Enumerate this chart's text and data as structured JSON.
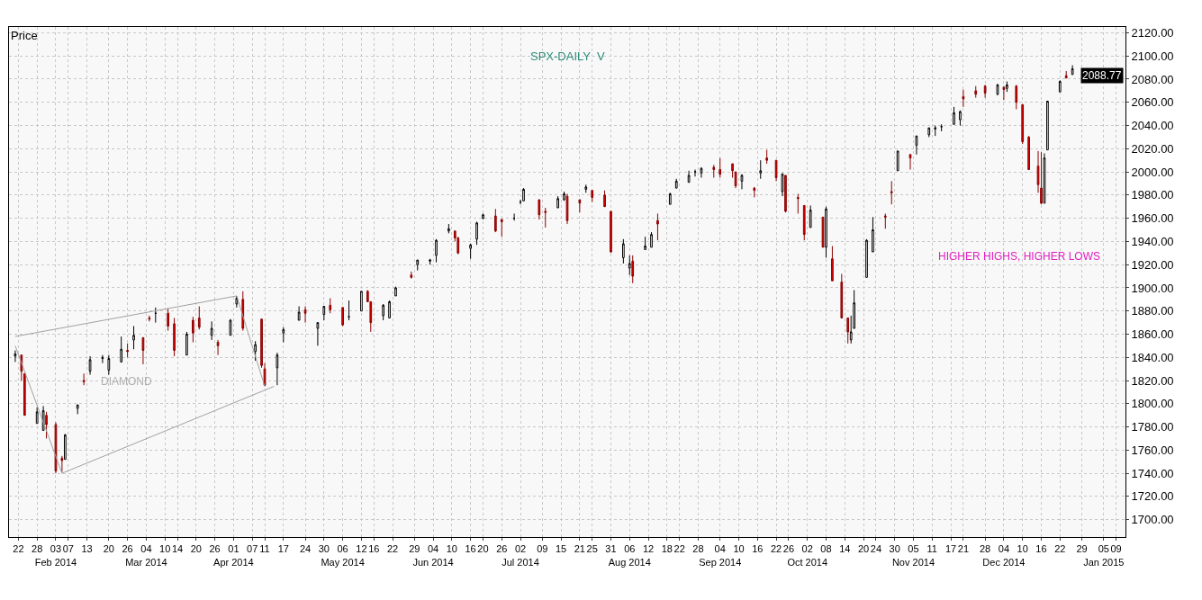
{
  "chart_data": {
    "type": "candlestick",
    "title": "SPX-DAILY  V",
    "ylabel": "Price",
    "x": [
      "2014-01-21",
      "2014-01-23",
      "2014-01-24",
      "2014-01-28",
      "2014-01-30",
      "2014-01-31",
      "2014-02-03",
      "2014-02-05",
      "2014-02-06",
      "2014-02-10",
      "2014-02-12",
      "2014-02-14",
      "2014-02-18",
      "2014-02-20",
      "2014-02-24",
      "2014-02-26",
      "2014-02-28",
      "2014-03-03",
      "2014-03-05",
      "2014-03-07",
      "2014-03-11",
      "2014-03-13",
      "2014-03-17",
      "2014-03-19",
      "2014-03-21",
      "2014-03-25",
      "2014-03-27",
      "2014-03-31",
      "2014-04-02",
      "2014-04-04",
      "2014-04-08",
      "2014-04-10",
      "2014-04-11",
      "2014-04-15",
      "2014-04-17",
      "2014-04-22",
      "2014-04-24",
      "2014-04-28",
      "2014-04-30",
      "2014-05-02",
      "2014-05-06",
      "2014-05-08",
      "2014-05-12",
      "2014-05-14",
      "2014-05-15",
      "2014-05-19",
      "2014-05-21",
      "2014-05-23",
      "2014-05-28",
      "2014-05-30",
      "2014-06-03",
      "2014-06-05",
      "2014-06-09",
      "2014-06-11",
      "2014-06-12",
      "2014-06-16",
      "2014-06-18",
      "2014-06-20",
      "2014-06-24",
      "2014-06-26",
      "2014-06-30",
      "2014-07-02",
      "2014-07-03",
      "2014-07-08",
      "2014-07-10",
      "2014-07-14",
      "2014-07-16",
      "2014-07-17",
      "2014-07-21",
      "2014-07-23",
      "2014-07-25",
      "2014-07-29",
      "2014-07-31",
      "2014-08-04",
      "2014-08-06",
      "2014-08-07",
      "2014-08-11",
      "2014-08-13",
      "2014-08-15",
      "2014-08-19",
      "2014-08-21",
      "2014-08-25",
      "2014-08-27",
      "2014-08-29",
      "2014-09-02",
      "2014-09-04",
      "2014-09-08",
      "2014-09-09",
      "2014-09-11",
      "2014-09-15",
      "2014-09-17",
      "2014-09-19",
      "2014-09-22",
      "2014-09-24",
      "2014-09-25",
      "2014-09-29",
      "2014-10-01",
      "2014-10-03",
      "2014-10-07",
      "2014-10-08",
      "2014-10-10",
      "2014-10-13",
      "2014-10-15",
      "2014-10-16",
      "2014-10-17",
      "2014-10-21",
      "2014-10-23",
      "2014-10-27",
      "2014-10-29",
      "2014-10-31",
      "2014-11-04",
      "2014-11-06",
      "2014-11-10",
      "2014-11-12",
      "2014-11-14",
      "2014-11-18",
      "2014-11-20",
      "2014-11-21",
      "2014-11-25",
      "2014-11-28",
      "2014-12-02",
      "2014-12-04",
      "2014-12-05",
      "2014-12-08",
      "2014-12-10",
      "2014-12-12",
      "2014-12-15",
      "2014-12-16",
      "2014-12-17",
      "2014-12-18",
      "2014-12-22",
      "2014-12-24",
      "2014-12-26"
    ],
    "ohlc": [
      [
        1841,
        1846,
        1836,
        1843
      ],
      [
        1842,
        1842,
        1820,
        1828
      ],
      [
        1826,
        1826,
        1790,
        1790
      ],
      [
        1783,
        1797,
        1783,
        1793
      ],
      [
        1777,
        1798,
        1777,
        1794
      ],
      [
        1790,
        1793,
        1770,
        1782
      ],
      [
        1782,
        1784,
        1740,
        1742
      ],
      [
        1753,
        1755,
        1741,
        1751
      ],
      [
        1752,
        1774,
        1752,
        1773
      ],
      [
        1796,
        1799,
        1791,
        1799
      ],
      [
        1820,
        1826,
        1816,
        1819
      ],
      [
        1828,
        1841,
        1825,
        1838
      ],
      [
        1839,
        1842,
        1835,
        1840
      ],
      [
        1829,
        1842,
        1825,
        1839
      ],
      [
        1836,
        1858,
        1836,
        1847
      ],
      [
        1846,
        1852,
        1840,
        1845
      ],
      [
        1855,
        1867,
        1847,
        1859
      ],
      [
        1857,
        1857,
        1834,
        1846
      ],
      [
        1874,
        1876,
        1871,
        1873
      ],
      [
        1878,
        1883,
        1870,
        1878
      ],
      [
        1878,
        1882,
        1863,
        1867
      ],
      [
        1869,
        1874,
        1841,
        1846
      ],
      [
        1842,
        1862,
        1842,
        1860
      ],
      [
        1872,
        1875,
        1853,
        1861
      ],
      [
        1874,
        1884,
        1864,
        1866
      ],
      [
        1859,
        1871,
        1855,
        1865
      ],
      [
        1853,
        1855,
        1842,
        1850
      ],
      [
        1859,
        1873,
        1859,
        1872
      ],
      [
        1886,
        1893,
        1883,
        1891
      ],
      [
        1890,
        1897,
        1863,
        1865
      ],
      [
        1845,
        1854,
        1837,
        1851
      ],
      [
        1873,
        1873,
        1831,
        1833
      ],
      [
        1830,
        1835,
        1815,
        1816
      ],
      [
        1831,
        1844,
        1816,
        1842
      ],
      [
        1861,
        1866,
        1853,
        1864
      ],
      [
        1872,
        1884,
        1872,
        1879
      ],
      [
        1881,
        1884,
        1870,
        1878
      ],
      [
        1865,
        1870,
        1850,
        1870
      ],
      [
        1877,
        1884,
        1872,
        1884
      ],
      [
        1885,
        1891,
        1878,
        1881
      ],
      [
        1883,
        1883,
        1867,
        1868
      ],
      [
        1875,
        1889,
        1872,
        1875
      ],
      [
        1880,
        1897,
        1880,
        1897
      ],
      [
        1897,
        1898,
        1888,
        1888
      ],
      [
        1888,
        1888,
        1862,
        1870
      ],
      [
        1876,
        1886,
        1872,
        1885
      ],
      [
        1874,
        1889,
        1874,
        1888
      ],
      [
        1893,
        1901,
        1893,
        1900
      ],
      [
        1911,
        1914,
        1908,
        1909
      ],
      [
        1920,
        1924,
        1915,
        1924
      ],
      [
        1923,
        1925,
        1920,
        1924
      ],
      [
        1928,
        1942,
        1922,
        1941
      ],
      [
        1949,
        1955,
        1947,
        1951
      ],
      [
        1949,
        1949,
        1940,
        1943
      ],
      [
        1943,
        1944,
        1929,
        1930
      ],
      [
        1934,
        1938,
        1925,
        1937
      ],
      [
        1942,
        1957,
        1937,
        1956
      ],
      [
        1960,
        1964,
        1959,
        1963
      ],
      [
        1962,
        1968,
        1948,
        1949
      ],
      [
        1959,
        1959,
        1944,
        1957
      ],
      [
        1960,
        1964,
        1958,
        1960
      ],
      [
        1974,
        1976,
        1972,
        1974
      ],
      [
        1975,
        1986,
        1975,
        1985
      ],
      [
        1976,
        1976,
        1959,
        1963
      ],
      [
        1966,
        1969,
        1952,
        1965
      ],
      [
        1969,
        1979,
        1969,
        1977
      ],
      [
        1976,
        1983,
        1975,
        1981
      ],
      [
        1979,
        1981,
        1955,
        1958
      ],
      [
        1976,
        1976,
        1965,
        1973
      ],
      [
        1985,
        1989,
        1982,
        1987
      ],
      [
        1984,
        1984,
        1974,
        1978
      ],
      [
        1980,
        1984,
        1970,
        1970
      ],
      [
        1966,
        1966,
        1930,
        1931
      ],
      [
        1926,
        1942,
        1921,
        1938
      ],
      [
        1917,
        1928,
        1911,
        1921
      ],
      [
        1923,
        1928,
        1904,
        1910
      ],
      [
        1933,
        1944,
        1933,
        1936
      ],
      [
        1935,
        1948,
        1935,
        1946
      ],
      [
        1958,
        1964,
        1941,
        1955
      ],
      [
        1972,
        1982,
        1972,
        1981
      ],
      [
        1986,
        1994,
        1986,
        1992
      ],
      [
        1991,
        2001,
        1991,
        1997
      ],
      [
        2000,
        2002,
        1996,
        2000
      ],
      [
        1999,
        2004,
        1995,
        2003
      ],
      [
        2004,
        2006,
        1995,
        2002
      ],
      [
        2002,
        2012,
        1995,
        1998
      ],
      [
        2007,
        2007,
        1995,
        2001
      ],
      [
        2000,
        2000,
        1986,
        1988
      ],
      [
        1992,
        1998,
        1985,
        1997
      ],
      [
        1986,
        1987,
        1978,
        1984
      ],
      [
        1999,
        2010,
        1994,
        2001
      ],
      [
        2012,
        2019,
        2007,
        2010
      ],
      [
        2010,
        2010,
        1992,
        1995
      ],
      [
        1983,
        1999,
        1979,
        1998
      ],
      [
        1997,
        1997,
        1965,
        1966
      ],
      [
        1978,
        1981,
        1964,
        1977
      ],
      [
        1971,
        1971,
        1941,
        1946
      ],
      [
        1952,
        1971,
        1952,
        1967
      ],
      [
        1961,
        1961,
        1935,
        1935
      ],
      [
        1935,
        1970,
        1926,
        1968
      ],
      [
        1925,
        1936,
        1906,
        1906
      ],
      [
        1905,
        1912,
        1874,
        1874
      ],
      [
        1874,
        1874,
        1852,
        1862
      ],
      [
        1855,
        1876,
        1852,
        1862
      ],
      [
        1865,
        1898,
        1865,
        1887
      ],
      [
        1909,
        1942,
        1909,
        1941
      ],
      [
        1931,
        1961,
        1931,
        1950
      ],
      [
        1962,
        1964,
        1951,
        1961
      ],
      [
        1983,
        1992,
        1972,
        1982
      ],
      [
        2001,
        2018,
        2001,
        2018
      ],
      [
        2015,
        2015,
        2002,
        2012
      ],
      [
        2023,
        2031,
        2015,
        2031
      ],
      [
        2032,
        2038,
        2030,
        2038
      ],
      [
        2037,
        2040,
        2031,
        2038
      ],
      [
        2039,
        2041,
        2035,
        2039
      ],
      [
        2041,
        2056,
        2041,
        2051
      ],
      [
        2045,
        2053,
        2040,
        2052
      ],
      [
        2065,
        2071,
        2056,
        2063
      ],
      [
        2070,
        2074,
        2064,
        2067
      ],
      [
        2074,
        2075,
        2064,
        2068
      ],
      [
        2067,
        2076,
        2066,
        2075
      ],
      [
        2073,
        2074,
        2062,
        2071
      ],
      [
        2072,
        2078,
        2069,
        2075
      ],
      [
        2074,
        2075,
        2054,
        2060
      ],
      [
        2058,
        2058,
        2024,
        2026
      ],
      [
        2030,
        2031,
        2002,
        2002
      ],
      [
        2005,
        2018,
        1982,
        1989
      ],
      [
        1986,
        2017,
        1972,
        1973
      ],
      [
        1973,
        2016,
        1973,
        2012
      ],
      [
        2019,
        2061,
        2019,
        2061
      ],
      [
        2069,
        2079,
        2069,
        2078
      ],
      [
        2083,
        2087,
        2081,
        2081
      ],
      [
        2084,
        2092,
        2084,
        2089
      ]
    ],
    "series": [
      {
        "type": "line",
        "color": "#a0a0a0",
        "x": [
          "2014-01-21",
          "2014-04-02",
          "2014-04-11"
        ],
        "values": [
          1858,
          1893,
          1815
        ]
      },
      {
        "type": "line",
        "color": "#a0a0a0",
        "x": [
          "2014-01-21",
          "2014-02-05",
          "2014-04-14"
        ],
        "values": [
          1850,
          1740,
          1815
        ]
      }
    ],
    "annotations": [
      "DIAMOND",
      "HIGHER HIGHS, HIGHER LOWS",
      "2088.77"
    ],
    "xlim": [
      "2014-01-19",
      "2015-01-12"
    ],
    "xticks": [
      {
        "value": "2014-01-22",
        "label": "22"
      },
      {
        "value": "2014-01-28",
        "label": "28"
      },
      {
        "value": "2014-02-03",
        "label": "03\nFeb 2014"
      },
      {
        "value": "2014-02-07",
        "label": "07"
      },
      {
        "value": "2014-02-13",
        "label": "13"
      },
      {
        "value": "2014-02-20",
        "label": "20"
      },
      {
        "value": "2014-02-26",
        "label": "26"
      },
      {
        "value": "2014-03-04",
        "label": "04\nMar 2014"
      },
      {
        "value": "2014-03-10",
        "label": "10"
      },
      {
        "value": "2014-03-14",
        "label": "14"
      },
      {
        "value": "2014-03-20",
        "label": "20"
      },
      {
        "value": "2014-03-26",
        "label": "26"
      },
      {
        "value": "2014-04-01",
        "label": "01\nApr 2014"
      },
      {
        "value": "2014-04-07",
        "label": "07"
      },
      {
        "value": "2014-04-11",
        "label": "11"
      },
      {
        "value": "2014-04-17",
        "label": "17"
      },
      {
        "value": "2014-04-24",
        "label": "24"
      },
      {
        "value": "2014-04-30",
        "label": "30"
      },
      {
        "value": "2014-05-06",
        "label": "06\nMay 2014"
      },
      {
        "value": "2014-05-12",
        "label": "12"
      },
      {
        "value": "2014-05-16",
        "label": "16"
      },
      {
        "value": "2014-05-22",
        "label": "22"
      },
      {
        "value": "2014-05-29",
        "label": "29"
      },
      {
        "value": "2014-06-04",
        "label": "04\nJun 2014"
      },
      {
        "value": "2014-06-10",
        "label": "10"
      },
      {
        "value": "2014-06-16",
        "label": "16"
      },
      {
        "value": "2014-06-20",
        "label": "20"
      },
      {
        "value": "2014-06-26",
        "label": "26"
      },
      {
        "value": "2014-07-02",
        "label": "02\nJul 2014"
      },
      {
        "value": "2014-07-09",
        "label": "09"
      },
      {
        "value": "2014-07-15",
        "label": "15"
      },
      {
        "value": "2014-07-21",
        "label": "21"
      },
      {
        "value": "2014-07-25",
        "label": "25"
      },
      {
        "value": "2014-07-31",
        "label": "31"
      },
      {
        "value": "2014-08-06",
        "label": "06\nAug 2014"
      },
      {
        "value": "2014-08-12",
        "label": "12"
      },
      {
        "value": "2014-08-18",
        "label": "18"
      },
      {
        "value": "2014-08-22",
        "label": "22"
      },
      {
        "value": "2014-08-28",
        "label": "28"
      },
      {
        "value": "2014-09-04",
        "label": "04\nSep 2014"
      },
      {
        "value": "2014-09-10",
        "label": "10"
      },
      {
        "value": "2014-09-16",
        "label": "16"
      },
      {
        "value": "2014-09-22",
        "label": "22"
      },
      {
        "value": "2014-09-26",
        "label": "26"
      },
      {
        "value": "2014-10-02",
        "label": "02\nOct 2014"
      },
      {
        "value": "2014-10-08",
        "label": "08"
      },
      {
        "value": "2014-10-14",
        "label": "14"
      },
      {
        "value": "2014-10-20",
        "label": "20"
      },
      {
        "value": "2014-10-24",
        "label": "24"
      },
      {
        "value": "2014-10-30",
        "label": "30"
      },
      {
        "value": "2014-11-05",
        "label": "05\nNov 2014"
      },
      {
        "value": "2014-11-11",
        "label": "11"
      },
      {
        "value": "2014-11-17",
        "label": "17"
      },
      {
        "value": "2014-11-21",
        "label": "21"
      },
      {
        "value": "2014-11-28",
        "label": "28"
      },
      {
        "value": "2014-12-04",
        "label": "04\nDec 2014"
      },
      {
        "value": "2014-12-10",
        "label": "10"
      },
      {
        "value": "2014-12-16",
        "label": "16"
      },
      {
        "value": "2014-12-22",
        "label": "22"
      },
      {
        "value": "2014-12-29",
        "label": "29"
      },
      {
        "value": "2015-01-05",
        "label": "05\nJan 2015"
      },
      {
        "value": "2015-01-09",
        "label": "09"
      }
    ],
    "ylim": [
      1685,
      2125
    ],
    "yticks": [
      {
        "value": 1700,
        "label": "1700.00"
      },
      {
        "value": 1720,
        "label": "1720.00"
      },
      {
        "value": 1740,
        "label": "1740.00"
      },
      {
        "value": 1760,
        "label": "1760.00"
      },
      {
        "value": 1780,
        "label": "1780.00"
      },
      {
        "value": 1800,
        "label": "1800.00"
      },
      {
        "value": 1820,
        "label": "1820.00"
      },
      {
        "value": 1840,
        "label": "1840.00"
      },
      {
        "value": 1860,
        "label": "1860.00"
      },
      {
        "value": 1880,
        "label": "1880.00"
      },
      {
        "value": 1900,
        "label": "1900.00"
      },
      {
        "value": 1920,
        "label": "1920.00"
      },
      {
        "value": 1940,
        "label": "1940.00"
      },
      {
        "value": 1960,
        "label": "1960.00"
      },
      {
        "value": 1980,
        "label": "1980.00"
      },
      {
        "value": 2000,
        "label": "2000.00"
      },
      {
        "value": 2020,
        "label": "2020.00"
      },
      {
        "value": 2040,
        "label": "2040.00"
      },
      {
        "value": 2060,
        "label": "2060.00"
      },
      {
        "value": 2080,
        "label": "2080.00"
      },
      {
        "value": 2100,
        "label": "2100.00"
      },
      {
        "value": 2120,
        "label": "2120.00"
      }
    ],
    "grid": true,
    "line_style": "solid",
    "marker": "none"
  }
}
